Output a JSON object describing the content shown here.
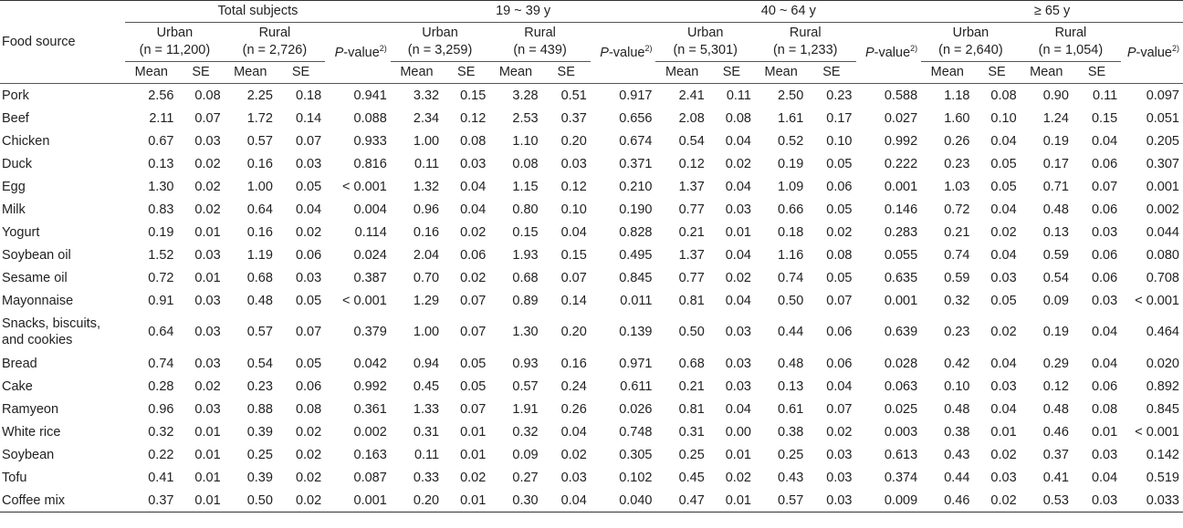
{
  "header": {
    "food_source": "Food source",
    "groups": [
      "Total subjects",
      "19 ~ 39 y",
      "40 ~ 64 y",
      "≥ 65 y"
    ],
    "subgroups": [
      {
        "urban": "Urban",
        "urban_n": "(n = 11,200)",
        "rural": "Rural",
        "rural_n": "(n = 2,726)"
      },
      {
        "urban": "Urban",
        "urban_n": "(n = 3,259)",
        "rural": "Rural",
        "rural_n": "(n = 439)"
      },
      {
        "urban": "Urban",
        "urban_n": "(n = 5,301)",
        "rural": "Rural",
        "rural_n": "(n = 1,233)"
      },
      {
        "urban": "Urban",
        "urban_n": "(n = 2,640)",
        "rural": "Rural",
        "rural_n": "(n = 1,054)"
      }
    ],
    "p_label": "P",
    "p_suffix": "-value",
    "p_sup": "2)",
    "mean": "Mean",
    "se": "SE"
  },
  "rows": [
    {
      "food": "Pork",
      "v": [
        "2.56",
        "0.08",
        "2.25",
        "0.18",
        "0.941",
        "3.32",
        "0.15",
        "3.28",
        "0.51",
        "0.917",
        "2.41",
        "0.11",
        "2.50",
        "0.23",
        "0.588",
        "1.18",
        "0.08",
        "0.90",
        "0.11",
        "0.097"
      ]
    },
    {
      "food": "Beef",
      "v": [
        "2.11",
        "0.07",
        "1.72",
        "0.14",
        "0.088",
        "2.34",
        "0.12",
        "2.53",
        "0.37",
        "0.656",
        "2.08",
        "0.08",
        "1.61",
        "0.17",
        "0.027",
        "1.60",
        "0.10",
        "1.24",
        "0.15",
        "0.051"
      ]
    },
    {
      "food": "Chicken",
      "v": [
        "0.67",
        "0.03",
        "0.57",
        "0.07",
        "0.933",
        "1.00",
        "0.08",
        "1.10",
        "0.20",
        "0.674",
        "0.54",
        "0.04",
        "0.52",
        "0.10",
        "0.992",
        "0.26",
        "0.04",
        "0.19",
        "0.04",
        "0.205"
      ]
    },
    {
      "food": "Duck",
      "v": [
        "0.13",
        "0.02",
        "0.16",
        "0.03",
        "0.816",
        "0.11",
        "0.03",
        "0.08",
        "0.03",
        "0.371",
        "0.12",
        "0.02",
        "0.19",
        "0.05",
        "0.222",
        "0.23",
        "0.05",
        "0.17",
        "0.06",
        "0.307"
      ]
    },
    {
      "food": "Egg",
      "v": [
        "1.30",
        "0.02",
        "1.00",
        "0.05",
        "< 0.001",
        "1.32",
        "0.04",
        "1.15",
        "0.12",
        "0.210",
        "1.37",
        "0.04",
        "1.09",
        "0.06",
        "0.001",
        "1.03",
        "0.05",
        "0.71",
        "0.07",
        "0.001"
      ]
    },
    {
      "food": "Milk",
      "v": [
        "0.83",
        "0.02",
        "0.64",
        "0.04",
        "0.004",
        "0.96",
        "0.04",
        "0.80",
        "0.10",
        "0.190",
        "0.77",
        "0.03",
        "0.66",
        "0.05",
        "0.146",
        "0.72",
        "0.04",
        "0.48",
        "0.06",
        "0.002"
      ]
    },
    {
      "food": "Yogurt",
      "v": [
        "0.19",
        "0.01",
        "0.16",
        "0.02",
        "0.114",
        "0.16",
        "0.02",
        "0.15",
        "0.04",
        "0.828",
        "0.21",
        "0.01",
        "0.18",
        "0.02",
        "0.283",
        "0.21",
        "0.02",
        "0.13",
        "0.03",
        "0.044"
      ]
    },
    {
      "food": "Soybean oil",
      "v": [
        "1.52",
        "0.03",
        "1.19",
        "0.06",
        "0.024",
        "2.04",
        "0.06",
        "1.93",
        "0.15",
        "0.495",
        "1.37",
        "0.04",
        "1.16",
        "0.08",
        "0.055",
        "0.74",
        "0.04",
        "0.59",
        "0.06",
        "0.080"
      ]
    },
    {
      "food": "Sesame oil",
      "v": [
        "0.72",
        "0.01",
        "0.68",
        "0.03",
        "0.387",
        "0.70",
        "0.02",
        "0.68",
        "0.07",
        "0.845",
        "0.77",
        "0.02",
        "0.74",
        "0.05",
        "0.635",
        "0.59",
        "0.03",
        "0.54",
        "0.06",
        "0.708"
      ]
    },
    {
      "food": "Mayonnaise",
      "v": [
        "0.91",
        "0.03",
        "0.48",
        "0.05",
        "< 0.001",
        "1.29",
        "0.07",
        "0.89",
        "0.14",
        "0.011",
        "0.81",
        "0.04",
        "0.50",
        "0.07",
        "0.001",
        "0.32",
        "0.05",
        "0.09",
        "0.03",
        "< 0.001"
      ]
    },
    {
      "food": "Snacks, biscuits, and cookies",
      "tall": true,
      "v": [
        "0.64",
        "0.03",
        "0.57",
        "0.07",
        "0.379",
        "1.00",
        "0.07",
        "1.30",
        "0.20",
        "0.139",
        "0.50",
        "0.03",
        "0.44",
        "0.06",
        "0.639",
        "0.23",
        "0.02",
        "0.19",
        "0.04",
        "0.464"
      ]
    },
    {
      "food": "Bread",
      "v": [
        "0.74",
        "0.03",
        "0.54",
        "0.05",
        "0.042",
        "0.94",
        "0.05",
        "0.93",
        "0.16",
        "0.971",
        "0.68",
        "0.03",
        "0.48",
        "0.06",
        "0.028",
        "0.42",
        "0.04",
        "0.29",
        "0.04",
        "0.020"
      ]
    },
    {
      "food": "Cake",
      "v": [
        "0.28",
        "0.02",
        "0.23",
        "0.06",
        "0.992",
        "0.45",
        "0.05",
        "0.57",
        "0.24",
        "0.611",
        "0.21",
        "0.03",
        "0.13",
        "0.04",
        "0.063",
        "0.10",
        "0.03",
        "0.12",
        "0.06",
        "0.892"
      ]
    },
    {
      "food": "Ramyeon",
      "v": [
        "0.96",
        "0.03",
        "0.88",
        "0.08",
        "0.361",
        "1.33",
        "0.07",
        "1.91",
        "0.26",
        "0.026",
        "0.81",
        "0.04",
        "0.61",
        "0.07",
        "0.025",
        "0.48",
        "0.04",
        "0.48",
        "0.08",
        "0.845"
      ]
    },
    {
      "food": "White rice",
      "v": [
        "0.32",
        "0.01",
        "0.39",
        "0.02",
        "0.002",
        "0.31",
        "0.01",
        "0.32",
        "0.04",
        "0.748",
        "0.31",
        "0.00",
        "0.38",
        "0.02",
        "0.003",
        "0.38",
        "0.01",
        "0.46",
        "0.01",
        "< 0.001"
      ]
    },
    {
      "food": "Soybean",
      "v": [
        "0.22",
        "0.01",
        "0.25",
        "0.02",
        "0.163",
        "0.11",
        "0.01",
        "0.09",
        "0.02",
        "0.305",
        "0.25",
        "0.01",
        "0.25",
        "0.03",
        "0.613",
        "0.43",
        "0.02",
        "0.37",
        "0.03",
        "0.142"
      ]
    },
    {
      "food": "Tofu",
      "v": [
        "0.41",
        "0.01",
        "0.39",
        "0.02",
        "0.087",
        "0.33",
        "0.02",
        "0.27",
        "0.03",
        "0.102",
        "0.45",
        "0.02",
        "0.43",
        "0.03",
        "0.374",
        "0.44",
        "0.03",
        "0.41",
        "0.04",
        "0.519"
      ]
    },
    {
      "food": "Coffee mix",
      "v": [
        "0.37",
        "0.01",
        "0.50",
        "0.02",
        "0.001",
        "0.20",
        "0.01",
        "0.30",
        "0.04",
        "0.040",
        "0.47",
        "0.01",
        "0.57",
        "0.03",
        "0.009",
        "0.46",
        "0.02",
        "0.53",
        "0.03",
        "0.033"
      ]
    }
  ]
}
